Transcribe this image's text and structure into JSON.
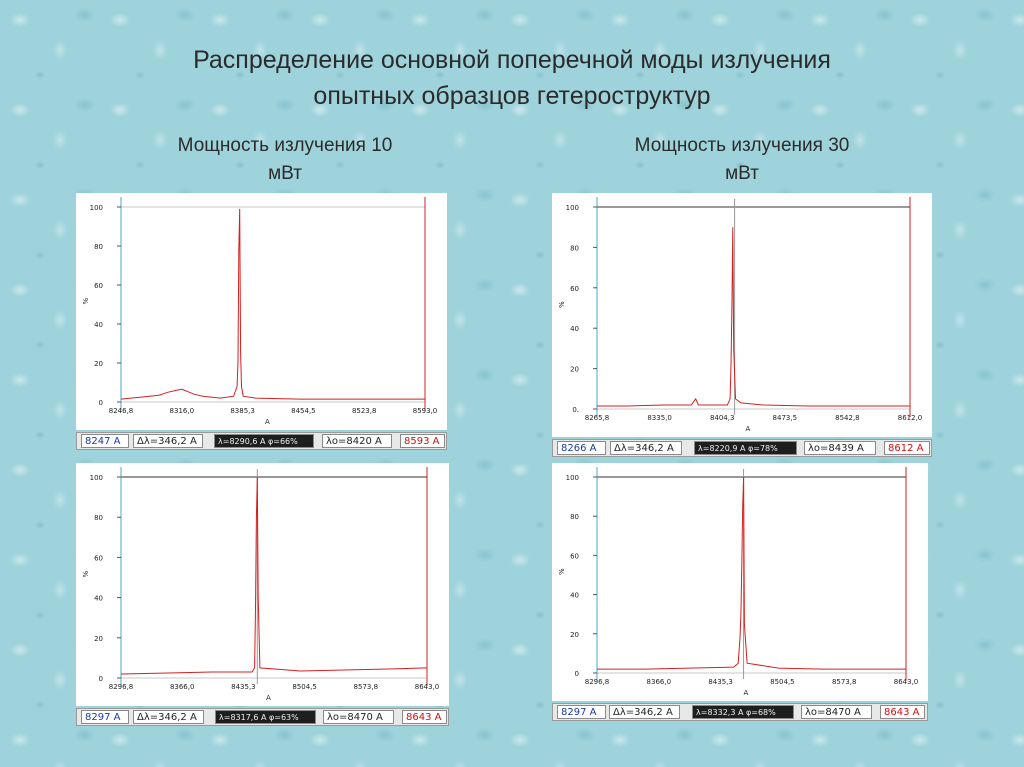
{
  "slide": {
    "title_line1": "Распределение основной поперечной моды излучения",
    "title_line2": "опытных образцов гетероструктур",
    "left_heading_line1": "Мощность излучения  10",
    "left_heading_line2": "мВт",
    "right_heading_line1": "Мощность излучения  30",
    "right_heading_line2": "мВт"
  },
  "colors": {
    "trace": "#d42020",
    "cursor_left": "#48a8c8",
    "cursor_right": "#d42020",
    "marker": "#999999"
  },
  "chart_data": [
    {
      "type": "line",
      "xlabel": "A",
      "ylabel": "%",
      "xlim": [
        8246.8,
        8593.0
      ],
      "ylim": [
        0,
        100
      ],
      "xtick_labels": [
        "8246,8",
        "8316,0",
        "8385,3",
        "8454,5",
        "8523,8",
        "8593,0"
      ],
      "ytick_labels": [
        "0",
        "20",
        "40",
        "60",
        "80",
        "100"
      ],
      "ref_line_100": false,
      "marker_x": null,
      "series": [
        {
          "x": [
            8246.8,
            8270,
            8290,
            8300,
            8310,
            8316,
            8322,
            8330,
            8340,
            8360,
            8375,
            8379,
            8380,
            8381,
            8382,
            8383,
            8384,
            8386,
            8400,
            8450,
            8500,
            8550,
            8593.0
          ],
          "y": [
            1.5,
            2.5,
            3.5,
            5,
            6,
            6.5,
            5.5,
            4,
            3,
            2,
            3,
            8,
            21,
            78,
            99,
            25,
            8,
            3,
            2,
            1.5,
            1.5,
            1.5,
            1.5
          ]
        }
      ],
      "status": {
        "left": "8247 A",
        "dl": "Δλ=346,2 A",
        "peak": "λ=8290,6 A φ=66%",
        "center": "λo=8420 A",
        "right": "8593 A"
      }
    },
    {
      "type": "line",
      "xlabel": "A",
      "ylabel": "%",
      "xlim": [
        8265.8,
        8612.0
      ],
      "ylim": [
        0,
        100
      ],
      "xtick_labels": [
        "8265,8",
        "8335,0",
        "8404,3",
        "8473,5",
        "8542,8",
        "8612,0"
      ],
      "ytick_labels": [
        "0.",
        "20",
        "40",
        "60",
        "80",
        "100"
      ],
      "ref_line_100": true,
      "marker_x": 8418,
      "series": [
        {
          "x": [
            8265.8,
            8300,
            8340,
            8370,
            8375,
            8378,
            8390,
            8405,
            8410,
            8413,
            8414,
            8415,
            8416,
            8417,
            8419,
            8425,
            8450,
            8500,
            8560,
            8612.0
          ],
          "y": [
            1.5,
            1.5,
            2,
            2,
            5,
            2,
            2,
            2,
            2,
            5,
            22,
            50,
            90,
            30,
            5,
            3,
            2,
            1.5,
            1.5,
            1.5
          ]
        }
      ],
      "status": {
        "left": "8266 A",
        "dl": "Δλ=346,2 A",
        "peak": "λ=8220,9 A φ=78%",
        "center": "λo=8439 A",
        "right": "8612 A"
      }
    },
    {
      "type": "line",
      "xlabel": "A",
      "ylabel": "%",
      "xlim": [
        8296.8,
        8643.0
      ],
      "ylim": [
        0,
        100
      ],
      "xtick_labels": [
        "8296,8",
        "8366,0",
        "8435,3",
        "8504,5",
        "8573,8",
        "8643,0"
      ],
      "ytick_labels": [
        "0",
        "20",
        "40",
        "60",
        "80",
        "100"
      ],
      "ref_line_100": true,
      "marker_x": 8451,
      "series": [
        {
          "x": [
            8296.8,
            8350,
            8400,
            8445,
            8448,
            8449,
            8450,
            8451,
            8452,
            8454,
            8500,
            8550,
            8600,
            8643.0
          ],
          "y": [
            2,
            2.5,
            3,
            3,
            5,
            35,
            80,
            100,
            40,
            5,
            3.5,
            4,
            4.5,
            5
          ]
        }
      ],
      "status": {
        "left": "8297 A",
        "dl": "Δλ=346,2 A",
        "peak": "λ=8317,6 A φ=63%",
        "center": "λo=8470 A",
        "right": "8643 A"
      }
    },
    {
      "type": "line",
      "xlabel": "A",
      "ylabel": "%",
      "xlim": [
        8296.8,
        8643.0
      ],
      "ylim": [
        0,
        100
      ],
      "xtick_labels": [
        "8296,8",
        "8366,0",
        "8435,3",
        "8504,5",
        "8573,8",
        "8643,0"
      ],
      "ytick_labels": [
        "0",
        "20",
        "40",
        "60",
        "80",
        "100"
      ],
      "ref_line_100": true,
      "marker_x": 8461,
      "series": [
        {
          "x": [
            8296.8,
            8350,
            8400,
            8450,
            8455,
            8457,
            8458,
            8459,
            8460,
            8461,
            8462,
            8465,
            8500,
            8550,
            8600,
            8643.0
          ],
          "y": [
            2,
            2,
            2.5,
            3,
            5,
            18,
            30,
            55,
            85,
            100,
            25,
            5,
            2.5,
            2,
            2,
            2
          ]
        }
      ],
      "status": {
        "left": "8297 A",
        "dl": "Δλ=346,2 A",
        "peak": "λ=8332,3 A φ=68%",
        "center": "λo=8470 A",
        "right": "8643 A"
      }
    }
  ]
}
